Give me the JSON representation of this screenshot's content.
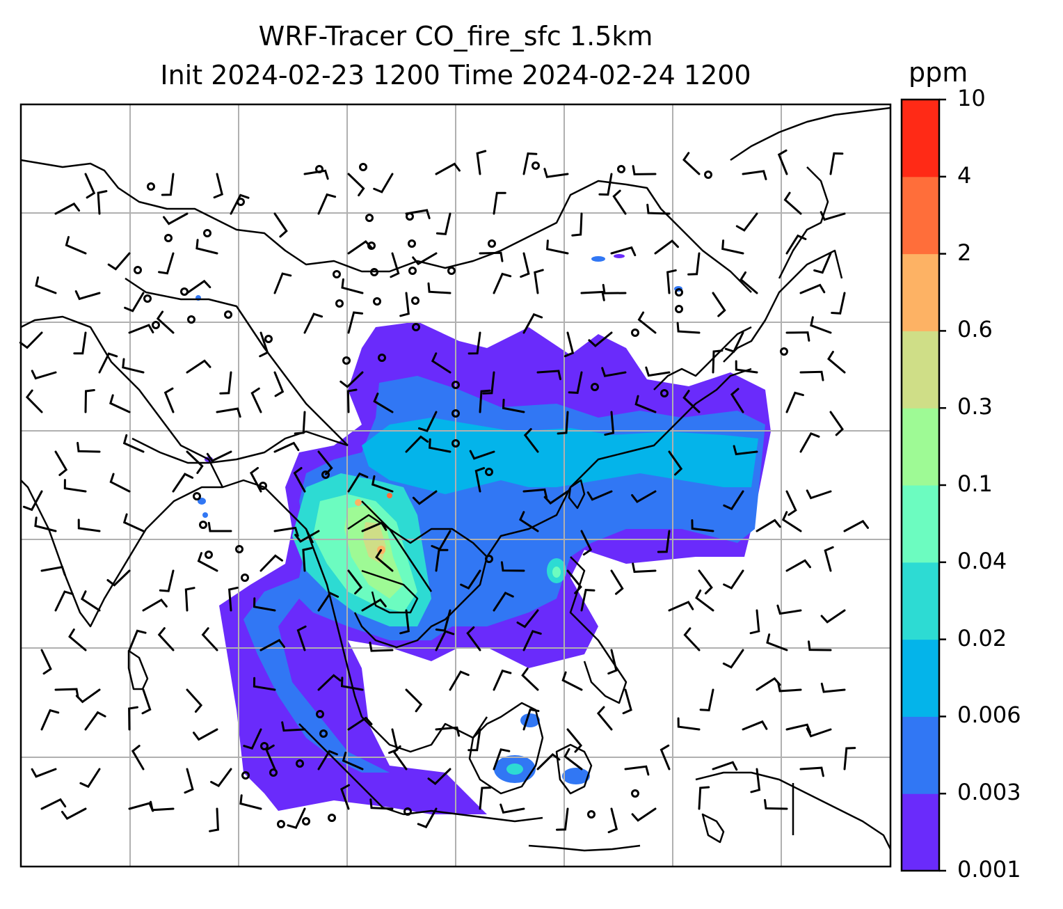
{
  "title": {
    "line1": "WRF-Tracer CO_fire_sfc 1.5km",
    "line2": "Init 2024-02-23 1200 Time 2024-02-24 1200"
  },
  "colorbar": {
    "unit": "ppm",
    "levels": [
      "0.001",
      "0.003",
      "0.006",
      "0.02",
      "0.04",
      "0.1",
      "0.3",
      "0.6",
      "2",
      "4",
      "10"
    ],
    "colors": [
      "#6a2bfb",
      "#3177f4",
      "#04b4ea",
      "#2ddbd3",
      "#6cfcc0",
      "#9efa95",
      "#cfde87",
      "#fdb264",
      "#ff6e3a",
      "#ff2a16"
    ]
  },
  "map": {
    "field": "CO_fire_sfc",
    "gridlines": true,
    "coastlines": true,
    "wind_barbs": true
  }
}
